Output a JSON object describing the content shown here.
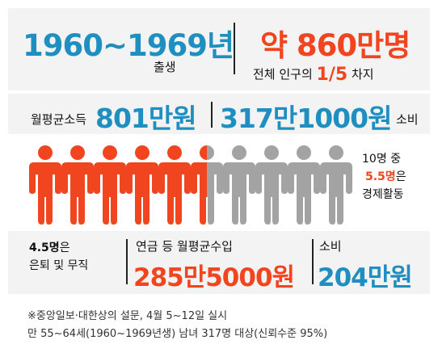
{
  "birth": {
    "years": "1960~1969년",
    "label": "출생"
  },
  "population": {
    "value": "약 860만명",
    "note_prefix": "전체 인구의 ",
    "fraction": "1/5",
    "note_suffix": " 차지"
  },
  "income": {
    "label": "월평균소득",
    "value": "801만원"
  },
  "spending": {
    "value": "317만1000원",
    "label": "소비"
  },
  "ratio": {
    "line1": "10명 중",
    "highlight": "5.5명",
    "highlight_suffix": "은",
    "line3": "경제활동"
  },
  "retired": {
    "count": "4.5명",
    "count_suffix": "은",
    "label": "은퇴 및 무직"
  },
  "pension": {
    "label": "연금 등 월평균수입",
    "value": "285만5000원"
  },
  "spending2": {
    "label": "소비",
    "value": "204만원"
  },
  "people_graphic": {
    "total": 10,
    "active": 5.5
  },
  "colors": {
    "accent_orange": "#f0451e",
    "accent_blue": "#1e8fc0",
    "inactive_grey": "#a3a3a3",
    "panel_grey": "#f3f3f3"
  },
  "footnote": {
    "line1": "※중앙일보·대한상의 설문, 4월 5~12일 실시",
    "line2": "만 55~64세(1960~1969년생) 남녀 317명 대상(신뢰수준 95%)"
  }
}
